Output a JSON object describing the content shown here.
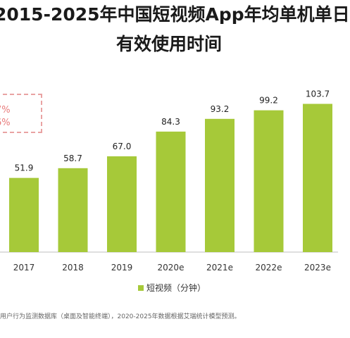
{
  "title": {
    "line1": "2015-2025年中国短视频App年均单机单日",
    "line2": "有效使用时间"
  },
  "cagr": {
    "line1": "7%",
    "line2": "6%"
  },
  "legend": {
    "label": "短视频（分钟）"
  },
  "footnote": "用户行为监测数据库（桌面及智能终端），2020-2025年数据根据艾瑞统计模型预测。",
  "colors": {
    "bar": "#a6c939",
    "axis": "#bfbfbf",
    "cagr": "#e87a7a"
  },
  "chart_data": {
    "type": "bar",
    "categories": [
      "2017",
      "2018",
      "2019",
      "2020e",
      "2021e",
      "2022e",
      "2023e"
    ],
    "values": [
      51.9,
      58.7,
      67.0,
      84.3,
      93.2,
      99.2,
      103.7
    ],
    "value_labels": [
      "51.9",
      "58.7",
      "67.0",
      "84.3",
      "93.2",
      "99.2",
      "103.7"
    ],
    "legend": [
      "短视频（分钟）"
    ],
    "legend_position": "bottom",
    "grid": false,
    "ylim": [
      0,
      130
    ]
  }
}
